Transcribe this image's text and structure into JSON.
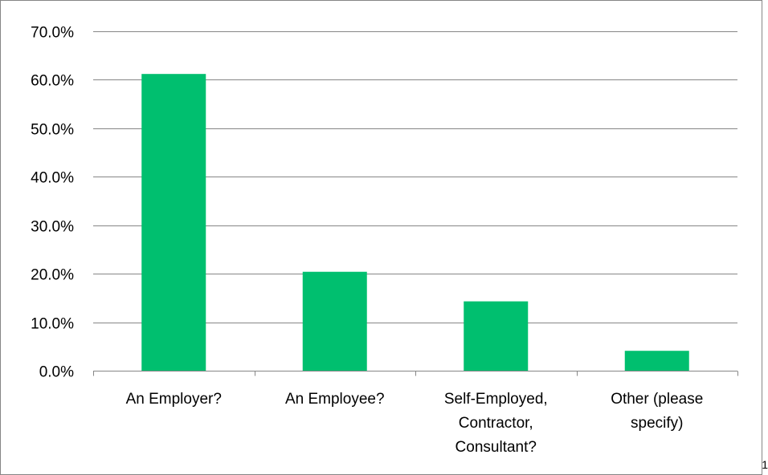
{
  "corner_note": "1",
  "colors": {
    "bar": "#00BF6F",
    "gridline": "#868686",
    "axis": "#868686",
    "border": "#868686"
  },
  "chart_data": {
    "type": "bar",
    "title": "",
    "xlabel": "",
    "ylabel": "",
    "categories": [
      [
        "An Employer?"
      ],
      [
        "An Employee?"
      ],
      [
        "Self-Employed,",
        "Contractor,",
        "Consultant?"
      ],
      [
        "Other (please",
        "specify)"
      ]
    ],
    "values": [
      61.2,
      20.4,
      14.3,
      4.1
    ],
    "ylim": [
      0,
      70
    ],
    "yticks": [
      0,
      10,
      20,
      30,
      40,
      50,
      60,
      70
    ],
    "ytick_format": "percent_1dp",
    "grid": true,
    "legend": "none"
  }
}
